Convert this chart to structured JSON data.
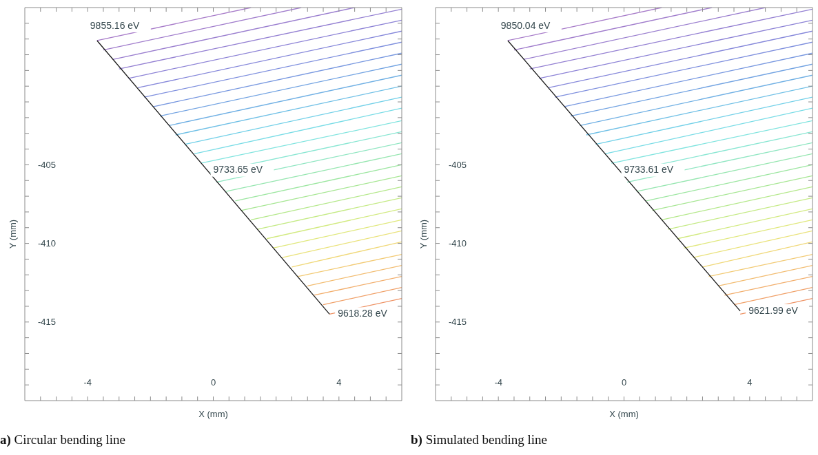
{
  "chart_data": [
    {
      "type": "line",
      "marker": "none",
      "xlabel": "X (mm)",
      "ylabel": "Y (mm)",
      "xlim": [
        -6,
        6
      ],
      "ylim": [
        -420,
        -395
      ],
      "xticks": [
        {
          "value": -5.5,
          "label": null
        },
        {
          "value": -5,
          "label": null
        },
        {
          "value": -4.5,
          "label": null
        },
        -4,
        {
          "value": -3.5,
          "label": null
        },
        {
          "value": -3,
          "label": null
        },
        {
          "value": -2.5,
          "label": null
        },
        {
          "value": -2,
          "label": null
        },
        {
          "value": -1.5,
          "label": null
        },
        {
          "value": -1,
          "label": null
        },
        {
          "value": -0.5,
          "label": null
        },
        0,
        {
          "value": 0.5,
          "label": null
        },
        {
          "value": 1,
          "label": null
        },
        {
          "value": 1.5,
          "label": null
        },
        {
          "value": 2,
          "label": null
        },
        {
          "value": 2.5,
          "label": null
        },
        {
          "value": 3,
          "label": null
        },
        {
          "value": 3.5,
          "label": null
        },
        4,
        {
          "value": 4.5,
          "label": null
        },
        {
          "value": 5,
          "label": null
        },
        {
          "value": 5.5,
          "label": null
        }
      ],
      "yticks": [
        {
          "value": -396,
          "label": null
        },
        {
          "value": -397,
          "label": null
        },
        {
          "value": -398,
          "label": null
        },
        {
          "value": -399,
          "label": null
        },
        {
          "value": -400,
          "label": null
        },
        {
          "value": -401,
          "label": null
        },
        {
          "value": -402,
          "label": null
        },
        {
          "value": -403,
          "label": null
        },
        {
          "value": -404,
          "label": null
        },
        -405,
        {
          "value": -406,
          "label": null
        },
        {
          "value": -407,
          "label": null
        },
        {
          "value": -408,
          "label": null
        },
        {
          "value": -409,
          "label": null
        },
        -410,
        {
          "value": -411,
          "label": null
        },
        {
          "value": -412,
          "label": null
        },
        {
          "value": -413,
          "label": null
        },
        {
          "value": -414,
          "label": null
        },
        -415,
        {
          "value": -416,
          "label": null
        },
        {
          "value": -417,
          "label": null
        },
        {
          "value": -418,
          "label": null
        },
        {
          "value": -419,
          "label": null
        }
      ],
      "series": [
        {
          "color": "#a77bc9",
          "x": [
            -3.7,
            1.2
          ],
          "values": [
            -397.1,
            -395
          ]
        },
        {
          "color": "#a07ccc",
          "x": [
            -3.5,
            2.8
          ],
          "values": [
            -397.7,
            -395
          ]
        },
        {
          "color": "#9a7ecf",
          "x": [
            -3.2,
            4.5
          ],
          "values": [
            -398.3,
            -395
          ]
        },
        {
          "color": "#937fd2",
          "x": [
            -3,
            6
          ],
          "values": [
            -398.9,
            -395.1
          ]
        },
        {
          "color": "#8c82d6",
          "x": [
            -2.7,
            6
          ],
          "values": [
            -399.5,
            -395.8
          ]
        },
        {
          "color": "#8587da",
          "x": [
            -2.4,
            6
          ],
          "values": [
            -400.1,
            -396.5
          ]
        },
        {
          "color": "#7e8fde",
          "x": [
            -2.2,
            6
          ],
          "values": [
            -400.7,
            -397.2
          ]
        },
        {
          "color": "#7898e0",
          "x": [
            -1.9,
            6
          ],
          "values": [
            -401.3,
            -397.9
          ]
        },
        {
          "color": "#72a3e2",
          "x": [
            -1.7,
            6
          ],
          "values": [
            -401.9,
            -398.6
          ]
        },
        {
          "color": "#70b0e4",
          "x": [
            -1.4,
            6
          ],
          "values": [
            -402.5,
            -399.3
          ]
        },
        {
          "color": "#70c0e6",
          "x": [
            -1.2,
            6
          ],
          "values": [
            -403.1,
            -400
          ]
        },
        {
          "color": "#72d0e8",
          "x": [
            -0.9,
            6
          ],
          "values": [
            -403.7,
            -400.7
          ]
        },
        {
          "color": "#78dce6",
          "x": [
            -0.6,
            6
          ],
          "values": [
            -404.3,
            -401.4
          ]
        },
        {
          "color": "#80e4df",
          "x": [
            -0.4,
            6
          ],
          "values": [
            -404.9,
            -402.2
          ]
        },
        {
          "color": "#88e6d2",
          "x": [
            -0.1,
            6
          ],
          "values": [
            -405.5,
            -402.9
          ]
        },
        {
          "color": "#90e6c2",
          "x": [
            0.1,
            6
          ],
          "values": [
            -406.1,
            -403.6
          ]
        },
        {
          "color": "#96e6b0",
          "x": [
            0.4,
            6
          ],
          "values": [
            -406.7,
            -404.3
          ]
        },
        {
          "color": "#9ce6a0",
          "x": [
            0.7,
            6
          ],
          "values": [
            -407.3,
            -405
          ]
        },
        {
          "color": "#a6e692",
          "x": [
            0.9,
            6
          ],
          "values": [
            -407.9,
            -405.7
          ]
        },
        {
          "color": "#b4e88a",
          "x": [
            1.2,
            6
          ],
          "values": [
            -408.5,
            -406.4
          ]
        },
        {
          "color": "#c4ea84",
          "x": [
            1.4,
            6
          ],
          "values": [
            -409.1,
            -407.1
          ]
        },
        {
          "color": "#d2ea80",
          "x": [
            1.7,
            6
          ],
          "values": [
            -409.7,
            -407.8
          ]
        },
        {
          "color": "#e0e87c",
          "x": [
            1.9,
            6
          ],
          "values": [
            -410.3,
            -408.5
          ]
        },
        {
          "color": "#eae27a",
          "x": [
            2.2,
            6
          ],
          "values": [
            -410.9,
            -409.2
          ]
        },
        {
          "color": "#f0d878",
          "x": [
            2.5,
            6
          ],
          "values": [
            -411.5,
            -409.9
          ]
        },
        {
          "color": "#f2ca74",
          "x": [
            2.7,
            6
          ],
          "values": [
            -412.1,
            -410.7
          ]
        },
        {
          "color": "#f2bc70",
          "x": [
            3,
            6
          ],
          "values": [
            -412.7,
            -411.4
          ]
        },
        {
          "color": "#f2ae6c",
          "x": [
            3.2,
            6
          ],
          "values": [
            -413.3,
            -412.1
          ]
        },
        {
          "color": "#f0a068",
          "x": [
            3.5,
            6
          ],
          "values": [
            -413.9,
            -412.8
          ]
        },
        {
          "color": "#ee9264",
          "x": [
            3.7,
            6
          ],
          "values": [
            -414.5,
            -413.5
          ]
        },
        {
          "color": "#1a1a1a",
          "x": [
            -3.7,
            3.7
          ],
          "values": [
            -397.1,
            -414.5
          ]
        }
      ],
      "annotations": [
        {
          "text": "9855.16 eV",
          "x": -3.7,
          "y": -397.1
        },
        {
          "text": "9733.65 eV",
          "x": 0,
          "y": -405.8
        },
        {
          "text": "9618.28 eV",
          "x": 3.7,
          "y": -414.5
        },
        "**a)** Circular bending line"
      ]
    },
    {
      "type": "line",
      "marker": "none",
      "xlabel": "X (mm)",
      "ylabel": "Y (mm)",
      "xlim": [
        -6,
        6
      ],
      "ylim": [
        -420,
        -395
      ],
      "xticks": [
        {
          "value": -5.5,
          "label": null
        },
        {
          "value": -5,
          "label": null
        },
        {
          "value": -4.5,
          "label": null
        },
        -4,
        {
          "value": -3.5,
          "label": null
        },
        {
          "value": -3,
          "label": null
        },
        {
          "value": -2.5,
          "label": null
        },
        {
          "value": -2,
          "label": null
        },
        {
          "value": -1.5,
          "label": null
        },
        {
          "value": -1,
          "label": null
        },
        {
          "value": -0.5,
          "label": null
        },
        0,
        {
          "value": 0.5,
          "label": null
        },
        {
          "value": 1,
          "label": null
        },
        {
          "value": 1.5,
          "label": null
        },
        {
          "value": 2,
          "label": null
        },
        {
          "value": 2.5,
          "label": null
        },
        {
          "value": 3,
          "label": null
        },
        {
          "value": 3.5,
          "label": null
        },
        4,
        {
          "value": 4.5,
          "label": null
        },
        {
          "value": 5,
          "label": null
        },
        {
          "value": 5.5,
          "label": null
        }
      ],
      "yticks": [
        {
          "value": -396,
          "label": null
        },
        {
          "value": -397,
          "label": null
        },
        {
          "value": -398,
          "label": null
        },
        {
          "value": -399,
          "label": null
        },
        {
          "value": -400,
          "label": null
        },
        {
          "value": -401,
          "label": null
        },
        {
          "value": -402,
          "label": null
        },
        {
          "value": -403,
          "label": null
        },
        {
          "value": -404,
          "label": null
        },
        -405,
        {
          "value": -406,
          "label": null
        },
        {
          "value": -407,
          "label": null
        },
        {
          "value": -408,
          "label": null
        },
        {
          "value": -409,
          "label": null
        },
        -410,
        {
          "value": -411,
          "label": null
        },
        {
          "value": -412,
          "label": null
        },
        {
          "value": -413,
          "label": null
        },
        {
          "value": -414,
          "label": null
        },
        -415,
        {
          "value": -416,
          "label": null
        },
        {
          "value": -417,
          "label": null
        },
        {
          "value": -418,
          "label": null
        },
        {
          "value": -419,
          "label": null
        }
      ],
      "series": [
        {
          "color": "#a77bc9",
          "x": [
            -3.7,
            1.2
          ],
          "values": [
            -397.1,
            -395
          ]
        },
        {
          "color": "#a07ccc",
          "x": [
            -3.5,
            2.8
          ],
          "values": [
            -397.7,
            -395
          ]
        },
        {
          "color": "#9a7ecf",
          "x": [
            -3.2,
            4.5
          ],
          "values": [
            -398.3,
            -395
          ]
        },
        {
          "color": "#937fd2",
          "x": [
            -3,
            6
          ],
          "values": [
            -398.9,
            -395.1
          ]
        },
        {
          "color": "#8c82d6",
          "x": [
            -2.7,
            6
          ],
          "values": [
            -399.5,
            -395.8
          ]
        },
        {
          "color": "#8587da",
          "x": [
            -2.4,
            6
          ],
          "values": [
            -400.1,
            -396.5
          ]
        },
        {
          "color": "#7e8fde",
          "x": [
            -2.2,
            6
          ],
          "values": [
            -400.7,
            -397.2
          ]
        },
        {
          "color": "#7898e0",
          "x": [
            -1.9,
            6
          ],
          "values": [
            -401.3,
            -397.9
          ]
        },
        {
          "color": "#72a3e2",
          "x": [
            -1.7,
            6
          ],
          "values": [
            -401.9,
            -398.6
          ]
        },
        {
          "color": "#70b0e4",
          "x": [
            -1.4,
            6
          ],
          "values": [
            -402.5,
            -399.3
          ]
        },
        {
          "color": "#70c0e6",
          "x": [
            -1.2,
            6
          ],
          "values": [
            -403.1,
            -400
          ]
        },
        {
          "color": "#72d0e8",
          "x": [
            -0.9,
            6
          ],
          "values": [
            -403.7,
            -400.7
          ]
        },
        {
          "color": "#78dce6",
          "x": [
            -0.6,
            6
          ],
          "values": [
            -404.3,
            -401.4
          ]
        },
        {
          "color": "#80e4df",
          "x": [
            -0.4,
            6
          ],
          "values": [
            -404.9,
            -402.2
          ]
        },
        {
          "color": "#88e6d2",
          "x": [
            -0.1,
            6
          ],
          "values": [
            -405.5,
            -402.9
          ]
        },
        {
          "color": "#90e6c2",
          "x": [
            0.1,
            6
          ],
          "values": [
            -406.1,
            -403.6
          ]
        },
        {
          "color": "#96e6b0",
          "x": [
            0.4,
            6
          ],
          "values": [
            -406.7,
            -404.3
          ]
        },
        {
          "color": "#9ce6a0",
          "x": [
            0.7,
            6
          ],
          "values": [
            -407.3,
            -405
          ]
        },
        {
          "color": "#a6e692",
          "x": [
            0.9,
            6
          ],
          "values": [
            -407.9,
            -405.7
          ]
        },
        {
          "color": "#b4e88a",
          "x": [
            1.2,
            6
          ],
          "values": [
            -408.5,
            -406.4
          ]
        },
        {
          "color": "#c4ea84",
          "x": [
            1.4,
            6
          ],
          "values": [
            -409.1,
            -407.1
          ]
        },
        {
          "color": "#d2ea80",
          "x": [
            1.7,
            6
          ],
          "values": [
            -409.7,
            -407.8
          ]
        },
        {
          "color": "#e0e87c",
          "x": [
            1.9,
            6
          ],
          "values": [
            -410.3,
            -408.5
          ]
        },
        {
          "color": "#eae27a",
          "x": [
            2.2,
            6
          ],
          "values": [
            -410.9,
            -409.2
          ]
        },
        {
          "color": "#f0d878",
          "x": [
            2.5,
            6
          ],
          "values": [
            -411.5,
            -409.9
          ]
        },
        {
          "color": "#f2ca74",
          "x": [
            2.7,
            6
          ],
          "values": [
            -412.1,
            -410.7
          ]
        },
        {
          "color": "#f2bc70",
          "x": [
            3,
            6
          ],
          "values": [
            -412.7,
            -411.4
          ]
        },
        {
          "color": "#f2ae6c",
          "x": [
            3.2,
            6
          ],
          "values": [
            -413.3,
            -412.1
          ]
        },
        {
          "color": "#f0a068",
          "x": [
            3.5,
            6
          ],
          "values": [
            -413.9,
            -412.8
          ]
        },
        {
          "color": "#ee9264",
          "x": [
            3.7,
            6
          ],
          "values": [
            -414.5,
            -413.5
          ]
        },
        {
          "color": "#1a1a1a",
          "x": [
            -3.7,
            3.7
          ],
          "values": [
            -397.1,
            -414.3
          ]
        }
      ],
      "annotations": [
        {
          "text": "9850.04 eV",
          "x": -3.7,
          "y": -397.1
        },
        {
          "text": "9733.61 eV",
          "x": 0,
          "y": -405.8
        },
        {
          "text": "9621.99 eV",
          "x": 3.7,
          "y": -414.3
        },
        "**b)** Simulated bending line"
      ]
    }
  ]
}
